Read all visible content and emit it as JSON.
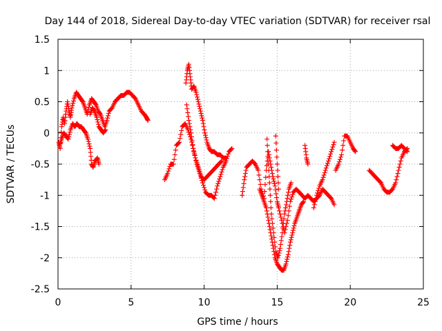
{
  "chart_data": {
    "type": "scatter",
    "title": "Day 144 of 2018, Sidereal Day-to-day VTEC variation (SDTVAR) for receiver rsal",
    "xlabel": "GPS time / hours",
    "ylabel": "SDTVAR / TECUs",
    "xlim": [
      0,
      25
    ],
    "ylim": [
      -2.5,
      1.5
    ],
    "xticks": [
      0,
      5,
      10,
      15,
      20,
      25
    ],
    "yticks": [
      -2.5,
      -2,
      -1.5,
      -1,
      -0.5,
      0,
      0.5,
      1,
      1.5
    ],
    "xtick_labels": [
      "0",
      "5",
      "10",
      "15",
      "20",
      "25"
    ],
    "ytick_labels": [
      "-2.5",
      "-2",
      "-1.5",
      "-1",
      "-0.5",
      "0",
      "0.5",
      "1",
      "1.5"
    ],
    "grid": true,
    "marker": "+",
    "color": "#ff0000",
    "series": [
      {
        "name": "SDTVAR",
        "segments": [
          [
            [
              0.05,
              -0.15
            ],
            [
              0.15,
              -0.25
            ],
            [
              0.25,
              0.1
            ],
            [
              0.35,
              0.25
            ],
            [
              0.45,
              0.15
            ],
            [
              0.55,
              0.35
            ],
            [
              0.65,
              0.5
            ],
            [
              0.75,
              0.35
            ],
            [
              0.85,
              0.25
            ],
            [
              0.95,
              0.4
            ],
            [
              1.1,
              0.55
            ],
            [
              1.25,
              0.65
            ],
            [
              1.4,
              0.6
            ],
            [
              1.55,
              0.55
            ],
            [
              1.7,
              0.5
            ],
            [
              1.85,
              0.4
            ],
            [
              2.0,
              0.3
            ],
            [
              2.15,
              0.45
            ],
            [
              2.3,
              0.55
            ],
            [
              2.45,
              0.5
            ],
            [
              2.6,
              0.45
            ],
            [
              2.75,
              0.35
            ],
            [
              2.9,
              0.3
            ],
            [
              3.05,
              0.2
            ],
            [
              3.2,
              0.1
            ],
            [
              3.35,
              0.2
            ],
            [
              3.5,
              0.35
            ],
            [
              3.7,
              0.4
            ],
            [
              3.9,
              0.5
            ],
            [
              4.1,
              0.55
            ],
            [
              4.3,
              0.6
            ],
            [
              4.5,
              0.6
            ],
            [
              4.7,
              0.65
            ],
            [
              4.9,
              0.65
            ],
            [
              5.1,
              0.6
            ],
            [
              5.3,
              0.55
            ],
            [
              5.5,
              0.45
            ],
            [
              5.7,
              0.35
            ],
            [
              5.9,
              0.3
            ],
            [
              6.05,
              0.25
            ],
            [
              6.15,
              0.2
            ]
          ],
          [
            [
              0.1,
              -0.2
            ],
            [
              0.25,
              -0.1
            ],
            [
              0.4,
              0.0
            ],
            [
              0.55,
              -0.05
            ],
            [
              0.7,
              -0.1
            ],
            [
              0.85,
              0.05
            ],
            [
              1.0,
              0.15
            ],
            [
              1.15,
              0.1
            ],
            [
              1.3,
              0.15
            ],
            [
              1.45,
              0.1
            ],
            [
              1.6,
              0.1
            ],
            [
              1.75,
              0.05
            ],
            [
              1.9,
              0.0
            ],
            [
              2.05,
              -0.1
            ],
            [
              2.2,
              -0.25
            ],
            [
              2.3,
              -0.5
            ],
            [
              2.4,
              -0.55
            ],
            [
              2.55,
              -0.45
            ],
            [
              2.7,
              -0.4
            ],
            [
              2.8,
              -0.5
            ]
          ],
          [
            [
              2.2,
              0.3
            ],
            [
              2.35,
              0.4
            ],
            [
              2.5,
              0.35
            ],
            [
              2.65,
              0.25
            ],
            [
              2.8,
              0.1
            ],
            [
              2.95,
              0.05
            ],
            [
              3.1,
              0.0
            ],
            [
              3.25,
              0.05
            ]
          ],
          [
            [
              7.3,
              -0.75
            ],
            [
              7.5,
              -0.65
            ],
            [
              7.7,
              -0.5
            ],
            [
              7.9,
              -0.5
            ],
            [
              8.1,
              -0.2
            ],
            [
              8.3,
              -0.15
            ],
            [
              8.5,
              0.1
            ],
            [
              8.7,
              0.15
            ],
            [
              8.9,
              0.05
            ],
            [
              9.1,
              -0.1
            ],
            [
              9.3,
              -0.3
            ],
            [
              9.5,
              -0.5
            ],
            [
              9.7,
              -0.65
            ],
            [
              9.9,
              -0.8
            ],
            [
              10.1,
              -0.95
            ],
            [
              10.3,
              -1.0
            ],
            [
              10.5,
              -1.0
            ],
            [
              10.7,
              -1.05
            ],
            [
              10.9,
              -0.85
            ],
            [
              11.1,
              -0.7
            ],
            [
              11.3,
              -0.55
            ],
            [
              11.5,
              -0.45
            ],
            [
              11.7,
              -0.3
            ],
            [
              11.9,
              -0.25
            ]
          ],
          [
            [
              8.75,
              0.8
            ],
            [
              8.85,
              1.0
            ],
            [
              8.95,
              1.1
            ],
            [
              9.05,
              0.9
            ],
            [
              9.15,
              0.7
            ],
            [
              9.3,
              0.75
            ],
            [
              9.45,
              0.65
            ],
            [
              9.6,
              0.5
            ],
            [
              9.75,
              0.35
            ],
            [
              9.9,
              0.2
            ],
            [
              10.05,
              0.0
            ],
            [
              10.2,
              -0.15
            ],
            [
              10.35,
              -0.25
            ],
            [
              10.5,
              -0.3
            ],
            [
              10.7,
              -0.3
            ],
            [
              10.9,
              -0.35
            ],
            [
              11.1,
              -0.35
            ],
            [
              11.3,
              -0.4
            ],
            [
              11.5,
              -0.4
            ]
          ],
          [
            [
              8.8,
              0.45
            ],
            [
              8.95,
              0.2
            ],
            [
              9.1,
              0.0
            ],
            [
              9.25,
              -0.25
            ],
            [
              9.4,
              -0.4
            ],
            [
              9.6,
              -0.55
            ],
            [
              9.8,
              -0.7
            ],
            [
              10.0,
              -0.75
            ],
            [
              10.2,
              -0.7
            ],
            [
              10.4,
              -0.65
            ],
            [
              10.6,
              -0.6
            ],
            [
              10.8,
              -0.55
            ],
            [
              11.0,
              -0.5
            ],
            [
              11.2,
              -0.45
            ]
          ],
          [
            [
              12.6,
              -1.0
            ],
            [
              12.75,
              -0.75
            ],
            [
              12.9,
              -0.55
            ],
            [
              13.1,
              -0.5
            ],
            [
              13.3,
              -0.45
            ],
            [
              13.5,
              -0.5
            ],
            [
              13.7,
              -0.6
            ],
            [
              13.9,
              -0.9
            ],
            [
              14.1,
              -1.05
            ],
            [
              14.25,
              -0.6
            ],
            [
              14.4,
              -0.3
            ],
            [
              14.55,
              -0.5
            ],
            [
              14.7,
              -0.7
            ],
            [
              14.85,
              -0.85
            ],
            [
              15.0,
              -1.1
            ],
            [
              15.1,
              -1.2
            ],
            [
              15.3,
              -1.4
            ],
            [
              15.5,
              -1.6
            ],
            [
              15.7,
              -1.4
            ],
            [
              15.9,
              -1.1
            ],
            [
              16.1,
              -0.95
            ],
            [
              16.3,
              -0.9
            ],
            [
              16.5,
              -0.95
            ],
            [
              16.7,
              -1.0
            ],
            [
              16.9,
              -1.05
            ],
            [
              17.1,
              -1.0
            ],
            [
              17.3,
              -1.05
            ],
            [
              17.5,
              -1.1
            ],
            [
              17.7,
              -1.05
            ],
            [
              17.9,
              -1.0
            ],
            [
              18.1,
              -0.9
            ],
            [
              18.3,
              -0.95
            ],
            [
              18.5,
              -1.0
            ],
            [
              18.7,
              -1.05
            ],
            [
              18.9,
              -1.15
            ]
          ],
          [
            [
              13.8,
              -0.9
            ],
            [
              13.95,
              -1.0
            ],
            [
              14.1,
              -1.1
            ],
            [
              14.25,
              -1.2
            ],
            [
              14.4,
              -1.4
            ],
            [
              14.55,
              -1.6
            ],
            [
              14.7,
              -1.8
            ],
            [
              14.85,
              -2.0
            ],
            [
              15.0,
              -2.1
            ],
            [
              15.15,
              -2.15
            ],
            [
              15.3,
              -2.2
            ],
            [
              15.45,
              -2.2
            ],
            [
              15.6,
              -2.1
            ],
            [
              15.75,
              -1.95
            ],
            [
              15.9,
              -1.75
            ],
            [
              16.05,
              -1.6
            ],
            [
              16.2,
              -1.45
            ],
            [
              16.35,
              -1.35
            ],
            [
              16.5,
              -1.25
            ],
            [
              16.65,
              -1.15
            ],
            [
              16.8,
              -1.1
            ]
          ],
          [
            [
              14.3,
              -0.1
            ],
            [
              14.4,
              -0.5
            ],
            [
              14.5,
              -0.9
            ],
            [
              14.6,
              -1.3
            ],
            [
              14.75,
              -1.6
            ],
            [
              14.9,
              -1.9
            ],
            [
              15.05,
              -2.0
            ],
            [
              15.2,
              -1.85
            ],
            [
              15.35,
              -1.6
            ],
            [
              15.5,
              -1.3
            ],
            [
              15.65,
              -1.1
            ],
            [
              15.8,
              -0.9
            ],
            [
              15.95,
              -0.8
            ]
          ],
          [
            [
              14.9,
              -0.05
            ],
            [
              15.0,
              -0.5
            ],
            [
              15.1,
              -0.9
            ]
          ],
          [
            [
              16.9,
              -0.2
            ],
            [
              17.0,
              -0.4
            ],
            [
              17.1,
              -0.5
            ]
          ],
          [
            [
              17.5,
              -1.2
            ],
            [
              17.7,
              -1.0
            ],
            [
              17.9,
              -0.85
            ],
            [
              18.1,
              -0.75
            ],
            [
              18.3,
              -0.6
            ],
            [
              18.5,
              -0.45
            ],
            [
              18.7,
              -0.3
            ],
            [
              18.9,
              -0.15
            ]
          ],
          [
            [
              19.0,
              -0.6
            ],
            [
              19.2,
              -0.5
            ],
            [
              19.4,
              -0.35
            ],
            [
              19.6,
              -0.05
            ],
            [
              19.8,
              -0.05
            ],
            [
              20.0,
              -0.15
            ],
            [
              20.2,
              -0.25
            ],
            [
              20.35,
              -0.3
            ]
          ],
          [
            [
              21.3,
              -0.6
            ],
            [
              21.5,
              -0.65
            ],
            [
              21.7,
              -0.7
            ],
            [
              21.9,
              -0.75
            ],
            [
              22.1,
              -0.8
            ],
            [
              22.3,
              -0.9
            ],
            [
              22.5,
              -0.95
            ],
            [
              22.7,
              -0.95
            ],
            [
              22.9,
              -0.9
            ],
            [
              23.1,
              -0.8
            ],
            [
              23.3,
              -0.6
            ],
            [
              23.5,
              -0.4
            ],
            [
              23.7,
              -0.3
            ],
            [
              23.9,
              -0.25
            ]
          ],
          [
            [
              22.9,
              -0.2
            ],
            [
              23.1,
              -0.25
            ],
            [
              23.3,
              -0.25
            ],
            [
              23.5,
              -0.2
            ],
            [
              23.7,
              -0.25
            ],
            [
              23.9,
              -0.3
            ]
          ]
        ]
      }
    ]
  }
}
